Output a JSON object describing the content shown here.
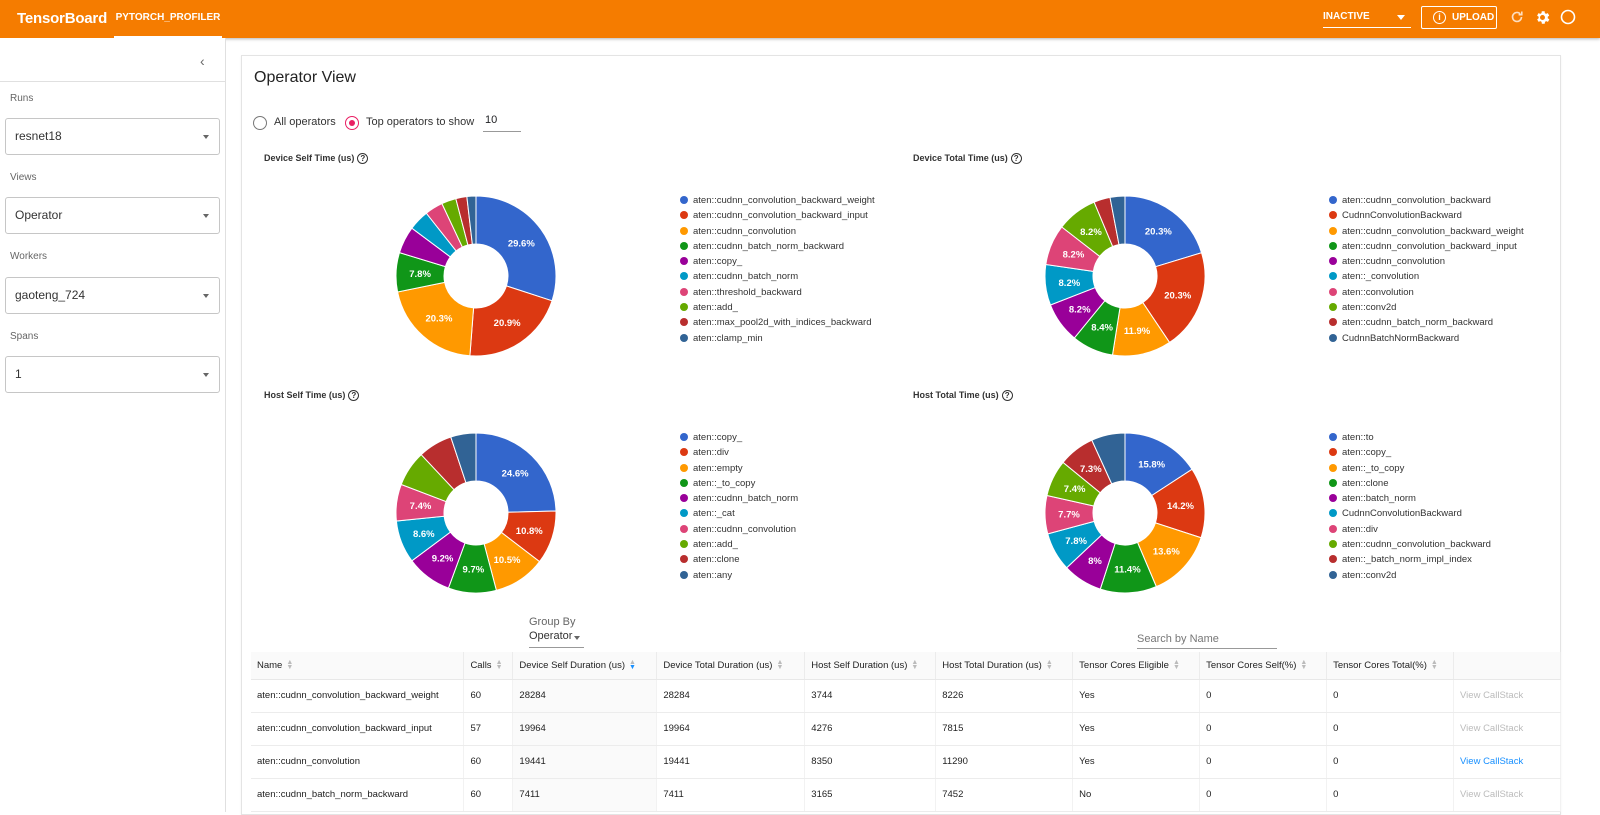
{
  "topbar": {
    "brand": "TensorBoard",
    "plugin_tab": "PYTORCH_PROFILER",
    "status_select": "INACTIVE",
    "upload_label": "UPLOAD"
  },
  "sidebar": {
    "runs_label": "Runs",
    "runs_value": "resnet18",
    "views_label": "Views",
    "views_value": "Operator",
    "workers_label": "Workers",
    "workers_value": "gaoteng_724",
    "spans_label": "Spans",
    "spans_value": "1"
  },
  "main": {
    "title": "Operator View",
    "radio_all": "All operators",
    "radio_top": "Top operators to show",
    "top_n": "10",
    "group_by_label": "Group By",
    "group_by_value": "Operator",
    "search_placeholder": "Search by Name"
  },
  "colors": [
    "#3366cc",
    "#dc3912",
    "#ff9900",
    "#109618",
    "#990099",
    "#0099c6",
    "#dd4477",
    "#66aa00",
    "#b82e2e",
    "#316395"
  ],
  "chart_data": [
    {
      "type": "pie",
      "title": "Device Self Time (us)",
      "labels": [
        "aten::cudnn_convolution_backward_weight",
        "aten::cudnn_convolution_backward_input",
        "aten::cudnn_convolution",
        "aten::cudnn_batch_norm_backward",
        "aten::copy_",
        "aten::cudnn_batch_norm",
        "aten::threshold_backward",
        "aten::add_",
        "aten::max_pool2d_with_indices_backward",
        "aten::clamp_min"
      ],
      "values": [
        29.6,
        20.9,
        20.3,
        7.8,
        5.4,
        4.1,
        3.6,
        2.9,
        2.2,
        1.8
      ],
      "data_labels": [
        "29.6%",
        "20.9%",
        "20.3%",
        "7.8%",
        "",
        "",
        "",
        "",
        "",
        ""
      ]
    },
    {
      "type": "pie",
      "title": "Device Total Time (us)",
      "labels": [
        "aten::cudnn_convolution_backward",
        "CudnnConvolutionBackward",
        "aten::cudnn_convolution_backward_weight",
        "aten::cudnn_convolution_backward_input",
        "aten::cudnn_convolution",
        "aten::_convolution",
        "aten::convolution",
        "aten::conv2d",
        "aten::cudnn_batch_norm_backward",
        "CudnnBatchNormBackward"
      ],
      "values": [
        20.3,
        20.3,
        11.9,
        8.4,
        8.2,
        8.2,
        8.2,
        8.2,
        3.3,
        3.0
      ],
      "data_labels": [
        "20.3%",
        "20.3%",
        "11.9%",
        "8.4%",
        "8.2%",
        "8.2%",
        "8.2%",
        "8.2%",
        "",
        ""
      ]
    },
    {
      "type": "pie",
      "title": "Host Self Time (us)",
      "labels": [
        "aten::copy_",
        "aten::div",
        "aten::empty",
        "aten::_to_copy",
        "aten::cudnn_batch_norm",
        "aten::_cat",
        "aten::cudnn_convolution",
        "aten::add_",
        "aten::clone",
        "aten::any"
      ],
      "values": [
        24.6,
        10.8,
        10.5,
        9.7,
        9.2,
        8.6,
        7.4,
        7.2,
        6.9,
        5.1
      ],
      "data_labels": [
        "24.6%",
        "10.8%",
        "10.5%",
        "9.7%",
        "9.2%",
        "8.6%",
        "7.4%",
        "",
        "",
        ""
      ]
    },
    {
      "type": "pie",
      "title": "Host Total Time (us)",
      "labels": [
        "aten::to",
        "aten::copy_",
        "aten::_to_copy",
        "aten::clone",
        "aten::batch_norm",
        "CudnnConvolutionBackward",
        "aten::div",
        "aten::cudnn_convolution_backward",
        "aten::_batch_norm_impl_index",
        "aten::conv2d"
      ],
      "values": [
        15.8,
        14.2,
        13.6,
        11.4,
        8.0,
        7.8,
        7.7,
        7.4,
        7.3,
        6.8
      ],
      "data_labels": [
        "15.8%",
        "14.2%",
        "13.6%",
        "11.4%",
        "8%",
        "7.8%",
        "7.7%",
        "7.4%",
        "7.3%",
        ""
      ]
    }
  ],
  "table": {
    "columns": [
      "Name",
      "Calls",
      "Device Self Duration (us)",
      "Device Total Duration (us)",
      "Host Self Duration (us)",
      "Host Total Duration (us)",
      "Tensor Cores Eligible",
      "Tensor Cores Self(%)",
      "Tensor Cores Total(%)",
      ""
    ],
    "callstack_label": "View CallStack",
    "rows": [
      {
        "cells": [
          "aten::cudnn_convolution_backward_weight",
          "60",
          "28284",
          "28284",
          "3744",
          "8226",
          "Yes",
          "0",
          "0"
        ],
        "callstack_enabled": false
      },
      {
        "cells": [
          "aten::cudnn_convolution_backward_input",
          "57",
          "19964",
          "19964",
          "4276",
          "7815",
          "Yes",
          "0",
          "0"
        ],
        "callstack_enabled": false
      },
      {
        "cells": [
          "aten::cudnn_convolution",
          "60",
          "19441",
          "19441",
          "8350",
          "11290",
          "Yes",
          "0",
          "0"
        ],
        "callstack_enabled": true
      },
      {
        "cells": [
          "aten::cudnn_batch_norm_backward",
          "60",
          "7411",
          "7411",
          "3165",
          "7452",
          "No",
          "0",
          "0"
        ],
        "callstack_enabled": false
      }
    ]
  }
}
